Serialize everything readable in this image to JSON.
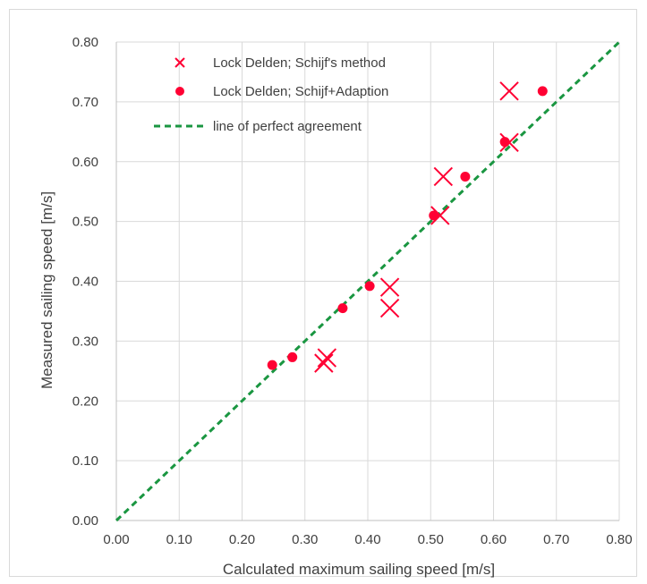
{
  "chart_data": {
    "type": "scatter",
    "title": "",
    "xlabel": "Calculated maximum sailing speed [m/s]",
    "ylabel": "Measured sailing speed [m/s]",
    "xlim": [
      0,
      0.8
    ],
    "ylim": [
      0,
      0.8
    ],
    "xticks": [
      "0.00",
      "0.10",
      "0.20",
      "0.30",
      "0.40",
      "0.50",
      "0.60",
      "0.70",
      "0.80"
    ],
    "yticks": [
      "0.00",
      "0.10",
      "0.20",
      "0.30",
      "0.40",
      "0.50",
      "0.60",
      "0.70",
      "0.80"
    ],
    "grid": true,
    "legend_position": "top-left",
    "series": [
      {
        "name": "Lock Delden; Schijf's method",
        "marker": "x",
        "color": "#ff0033",
        "points": [
          {
            "x": 0.33,
            "y": 0.263
          },
          {
            "x": 0.335,
            "y": 0.272
          },
          {
            "x": 0.435,
            "y": 0.39
          },
          {
            "x": 0.435,
            "y": 0.355
          },
          {
            "x": 0.515,
            "y": 0.51
          },
          {
            "x": 0.52,
            "y": 0.575
          },
          {
            "x": 0.625,
            "y": 0.632
          },
          {
            "x": 0.625,
            "y": 0.718
          }
        ]
      },
      {
        "name": "Lock Delden; Schijf+Adaption",
        "marker": "circle",
        "color": "#ff0033",
        "points": [
          {
            "x": 0.248,
            "y": 0.26
          },
          {
            "x": 0.28,
            "y": 0.273
          },
          {
            "x": 0.36,
            "y": 0.355
          },
          {
            "x": 0.403,
            "y": 0.392
          },
          {
            "x": 0.505,
            "y": 0.51
          },
          {
            "x": 0.555,
            "y": 0.575
          },
          {
            "x": 0.618,
            "y": 0.633
          },
          {
            "x": 0.678,
            "y": 0.718
          }
        ]
      },
      {
        "name": "line of perfect agreement",
        "marker": "dashed-line",
        "color": "#1a9641",
        "points": [
          {
            "x": 0.0,
            "y": 0.0
          },
          {
            "x": 0.8,
            "y": 0.8
          }
        ]
      }
    ]
  }
}
